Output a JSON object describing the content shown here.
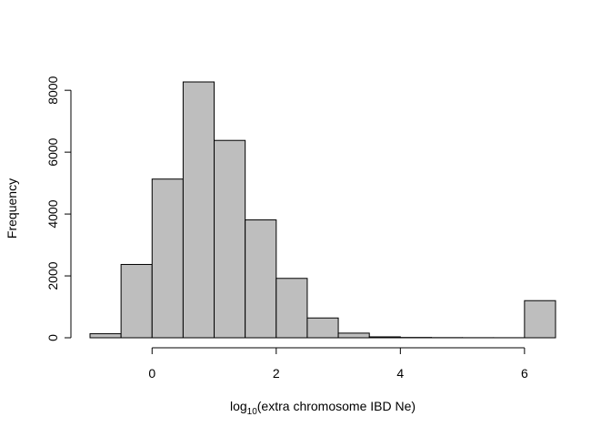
{
  "chart_data": {
    "type": "bar",
    "subtype": "histogram",
    "title": "",
    "xlabel_main": "log",
    "xlabel_sub": "10",
    "xlabel_rest": "(extra chromosome IBD Ne)",
    "ylabel": "Frequency",
    "bin_edges": [
      -1,
      -0.5,
      0,
      0.5,
      1,
      1.5,
      2,
      2.5,
      3,
      3.5,
      4,
      4.5,
      5,
      5.5,
      6,
      6.5
    ],
    "values": [
      130,
      2370,
      5130,
      8270,
      6380,
      3810,
      1920,
      640,
      150,
      30,
      10,
      5,
      3,
      2,
      1200
    ],
    "xlim": [
      -1,
      6.5
    ],
    "ylim": [
      0,
      8270
    ],
    "xticks": [
      0,
      2,
      4,
      6
    ],
    "yticks": [
      0,
      2000,
      4000,
      6000,
      8000
    ],
    "bar_fill": "#bebebe",
    "bar_stroke": "#000000",
    "grid": false,
    "legend": "none"
  }
}
